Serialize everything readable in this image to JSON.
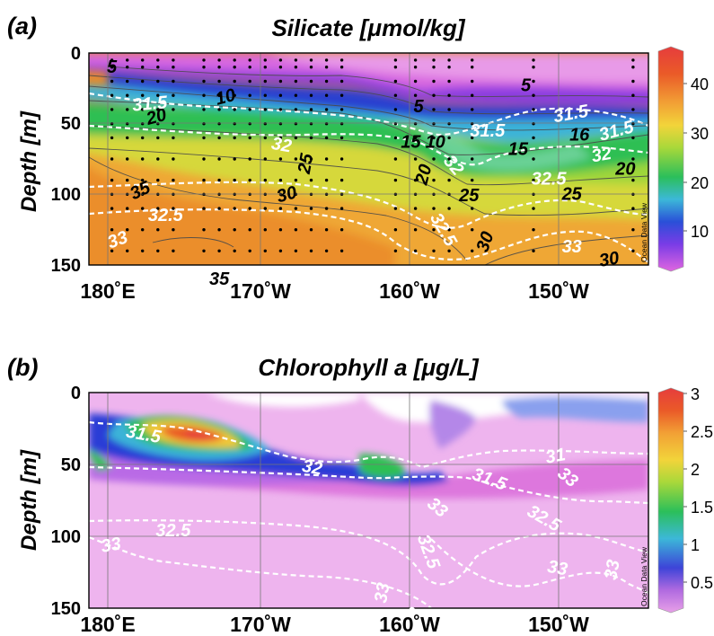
{
  "chart_data": [
    {
      "type": "heatmap",
      "panel_label": "(a)",
      "title": "Silicate [μmol/kg]",
      "ylabel": "Depth [m]",
      "x_ticks": [
        "180˚E",
        "170˚W",
        "160˚W",
        "150˚W"
      ],
      "x_tick_lon": [
        180,
        190,
        200,
        210
      ],
      "xlim": [
        179,
        215.5
      ],
      "y_ticks": [
        "0",
        "50",
        "100",
        "150"
      ],
      "y_tick_depth": [
        0,
        50,
        100,
        150
      ],
      "ylim": [
        0,
        150
      ],
      "colorbar": {
        "ticks": [
          "10",
          "20",
          "30",
          "40"
        ],
        "tick_values": [
          10,
          20,
          30,
          40
        ],
        "range": [
          3,
          47
        ]
      },
      "watermark": "Ocean Data View",
      "sample_profiles_lon": [
        180.5,
        181.5,
        182.5,
        183.5,
        184.5,
        186.5,
        187.5,
        188.5,
        189.5,
        190.5,
        191.5,
        192.5,
        193.5,
        194.5,
        195.5,
        199,
        200.3,
        201.5,
        202.5,
        204,
        208,
        214.5
      ],
      "sample_depths": [
        5,
        10,
        20,
        30,
        40,
        50,
        60,
        75,
        90,
        100,
        110,
        125,
        140
      ],
      "contour_labels": [
        {
          "text": "5",
          "color": "black",
          "lon": 180.5,
          "depth": 14,
          "angle": 0
        },
        {
          "text": "10",
          "color": "black",
          "lon": 188,
          "depth": 35,
          "angle": 15
        },
        {
          "text": "5",
          "color": "black",
          "lon": 200.5,
          "depth": 42,
          "angle": 0
        },
        {
          "text": "5",
          "color": "black",
          "lon": 207.5,
          "depth": 27,
          "angle": 0
        },
        {
          "text": "20",
          "color": "black",
          "lon": 183.5,
          "depth": 49,
          "angle": 15
        },
        {
          "text": "15",
          "color": "black",
          "lon": 200,
          "depth": 67,
          "angle": 0
        },
        {
          "text": "10",
          "color": "black",
          "lon": 201.6,
          "depth": 67,
          "angle": 0
        },
        {
          "text": "16",
          "color": "black",
          "lon": 211,
          "depth": 62,
          "angle": 0
        },
        {
          "text": "15",
          "color": "black",
          "lon": 207,
          "depth": 72,
          "angle": 0
        },
        {
          "text": "20",
          "color": "black",
          "lon": 201.2,
          "depth": 87,
          "angle": 75
        },
        {
          "text": "25",
          "color": "black",
          "lon": 193.5,
          "depth": 79,
          "angle": 80
        },
        {
          "text": "30",
          "color": "black",
          "lon": 192,
          "depth": 104,
          "angle": 15
        },
        {
          "text": "25",
          "color": "black",
          "lon": 203.8,
          "depth": 105,
          "angle": 0
        },
        {
          "text": "25",
          "color": "black",
          "lon": 210.5,
          "depth": 104,
          "angle": 0
        },
        {
          "text": "20",
          "color": "black",
          "lon": 214,
          "depth": 86,
          "angle": 0
        },
        {
          "text": "35",
          "color": "black",
          "lon": 182.5,
          "depth": 101,
          "angle": 25
        },
        {
          "text": "30",
          "color": "black",
          "lon": 205.2,
          "depth": 135,
          "angle": 70
        },
        {
          "text": "30",
          "color": "black",
          "lon": 213,
          "depth": 150,
          "angle": 10
        },
        {
          "text": "35",
          "color": "black",
          "lon": 187.5,
          "depth": 164,
          "angle": 0
        },
        {
          "text": "31.5",
          "color": "white",
          "lon": 183,
          "depth": 40,
          "angle": 5
        },
        {
          "text": "32",
          "color": "white",
          "lon": 191.5,
          "depth": 69,
          "angle": -10
        },
        {
          "text": "32.5",
          "color": "white",
          "lon": 184,
          "depth": 119,
          "angle": 0
        },
        {
          "text": "33",
          "color": "white",
          "lon": 181,
          "depth": 136,
          "angle": 20
        },
        {
          "text": "31.5",
          "color": "white",
          "lon": 205,
          "depth": 59,
          "angle": 0
        },
        {
          "text": "31.5",
          "color": "white",
          "lon": 210.5,
          "depth": 47,
          "angle": 10
        },
        {
          "text": "31.5",
          "color": "white",
          "lon": 213.5,
          "depth": 59,
          "angle": 15
        },
        {
          "text": "32",
          "color": "white",
          "lon": 202.5,
          "depth": 82,
          "angle": -50
        },
        {
          "text": "32",
          "color": "white",
          "lon": 212.5,
          "depth": 76,
          "angle": 10
        },
        {
          "text": "32.5",
          "color": "white",
          "lon": 209,
          "depth": 93,
          "angle": 0
        },
        {
          "text": "32.5",
          "color": "white",
          "lon": 201.8,
          "depth": 127,
          "angle": -60
        },
        {
          "text": "33",
          "color": "white",
          "lon": 198.5,
          "depth": 169,
          "angle": 70
        },
        {
          "text": "33",
          "color": "white",
          "lon": 200.3,
          "depth": 183,
          "angle": 70
        },
        {
          "text": "33",
          "color": "white",
          "lon": 210.5,
          "depth": 141,
          "angle": 0
        }
      ]
    },
    {
      "type": "heatmap",
      "panel_label": "(b)",
      "title": "Chlorophyll a [μg/L]",
      "ylabel": "Depth [m]",
      "x_ticks": [
        "180˚E",
        "170˚W",
        "160˚W",
        "150˚W"
      ],
      "x_tick_lon": [
        180,
        190,
        200,
        210
      ],
      "xlim": [
        179,
        215.5
      ],
      "y_ticks": [
        "0",
        "50",
        "100",
        "150"
      ],
      "y_tick_depth": [
        0,
        50,
        100,
        150
      ],
      "ylim": [
        0,
        150
      ],
      "colorbar": {
        "ticks": [
          "0.5",
          "1",
          "1.5",
          "2",
          "2.5",
          "3"
        ],
        "tick_values": [
          0.5,
          1,
          1.5,
          2,
          2.5,
          3
        ],
        "range": [
          0.1,
          3
        ]
      },
      "watermark": "Ocean Data View",
      "contour_labels": [
        {
          "text": "31.5",
          "color": "white",
          "lon": 182.5,
          "depth": 33,
          "angle": -10
        },
        {
          "text": "32",
          "color": "white",
          "lon": 193.5,
          "depth": 56,
          "angle": -10
        },
        {
          "text": "32.5",
          "color": "white",
          "lon": 184.5,
          "depth": 100,
          "angle": 0
        },
        {
          "text": "33",
          "color": "white",
          "lon": 180.5,
          "depth": 110,
          "angle": 10
        },
        {
          "text": "31.5",
          "color": "white",
          "lon": 205,
          "depth": 64,
          "angle": -20
        },
        {
          "text": "31",
          "color": "white",
          "lon": 209.5,
          "depth": 48,
          "angle": 10
        },
        {
          "text": "33",
          "color": "white",
          "lon": 201.5,
          "depth": 83,
          "angle": -40
        },
        {
          "text": "32.5",
          "color": "white",
          "lon": 200.8,
          "depth": 112,
          "angle": -70
        },
        {
          "text": "32.5",
          "color": "white",
          "lon": 208.5,
          "depth": 91,
          "angle": -30
        },
        {
          "text": "33",
          "color": "white",
          "lon": 210,
          "depth": 62,
          "angle": -40
        },
        {
          "text": "33",
          "color": "white",
          "lon": 198.5,
          "depth": 140,
          "angle": 80
        },
        {
          "text": "33",
          "color": "white",
          "lon": 200.5,
          "depth": 158,
          "angle": 70
        },
        {
          "text": "33",
          "color": "white",
          "lon": 209.5,
          "depth": 126,
          "angle": -10
        },
        {
          "text": "33",
          "color": "white",
          "lon": 213.5,
          "depth": 124,
          "angle": 80
        }
      ]
    }
  ]
}
